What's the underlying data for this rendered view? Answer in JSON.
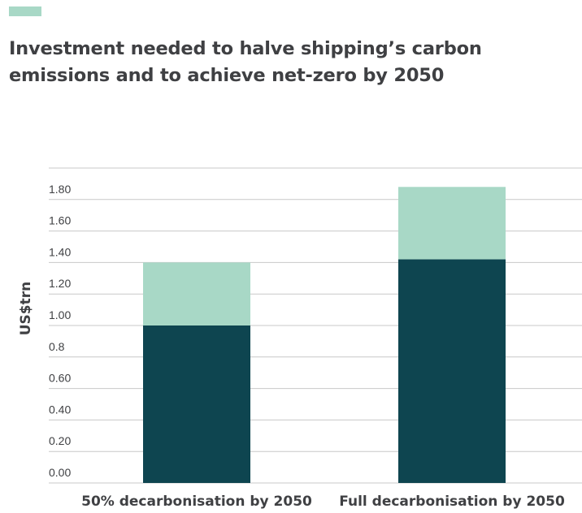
{
  "colors": {
    "accent": "#a8d8c6",
    "series_base": "#0e4550",
    "series_top": "#a8d8c6",
    "grid": "#c8c8c8",
    "text": "#3f4043"
  },
  "title": "Investment needed to halve shipping’s carbon emissions and to achieve net-zero by 2050",
  "chart_data": {
    "type": "bar",
    "stacked": true,
    "title": "Investment needed to halve shipping’s carbon emissions and to achieve net-zero by 2050",
    "xlabel": "",
    "ylabel": "US$trn",
    "categories": [
      "50% decarbonisation by 2050",
      "Full decarbonisation by 2050"
    ],
    "series": [
      {
        "values": [
          1.0,
          1.42
        ]
      },
      {
        "values": [
          0.4,
          0.46
        ]
      }
    ],
    "ylim": [
      0,
      2.0
    ],
    "yticks": [
      0,
      0.2,
      0.4,
      0.6,
      0.8,
      1.0,
      1.2,
      1.4,
      1.6,
      1.8
    ],
    "ytick_labels": [
      "0.00",
      "0.20",
      "0.40",
      "0.60",
      "0.8",
      "1.00",
      "1.20",
      "1.40",
      "1.60",
      "1.80"
    ],
    "grid": true,
    "legend": "none"
  }
}
